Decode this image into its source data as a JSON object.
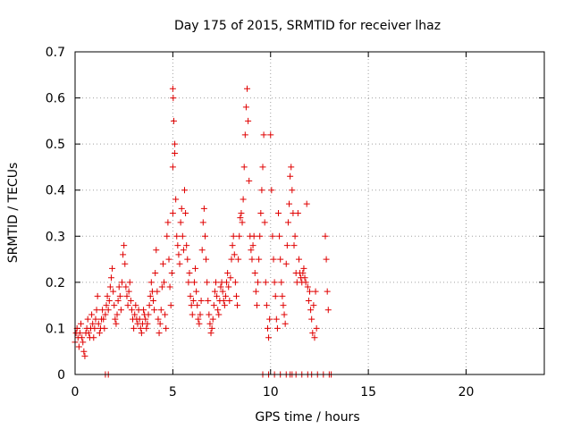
{
  "chart_data": {
    "type": "scatter",
    "title": "Day 175 of 2015, SRMTID for receiver lhaz",
    "xlabel": "GPS time / hours",
    "ylabel": "SRMTID / TECUs",
    "xlim": [
      0,
      24
    ],
    "ylim": [
      0,
      0.7
    ],
    "x_ticks": [
      0,
      5,
      10,
      15,
      20
    ],
    "x_tick_labels": [
      "0",
      "5",
      "10",
      "15",
      "20"
    ],
    "y_ticks": [
      0,
      0.1,
      0.2,
      0.3,
      0.4,
      0.5,
      0.6,
      0.7
    ],
    "y_tick_labels": [
      "0",
      "0.1",
      "0.2",
      "0.3",
      "0.4",
      "0.5",
      "0.6",
      "0.7"
    ],
    "grid": true,
    "marker": "plus",
    "color": "#e00000",
    "series": [
      {
        "name": "SRMTID",
        "points": [
          [
            0.0,
            0.07
          ],
          [
            0.05,
            0.09
          ],
          [
            0.1,
            0.1
          ],
          [
            0.15,
            0.08
          ],
          [
            0.2,
            0.06
          ],
          [
            0.25,
            0.09
          ],
          [
            0.3,
            0.11
          ],
          [
            0.35,
            0.08
          ],
          [
            0.4,
            0.07
          ],
          [
            0.45,
            0.05
          ],
          [
            0.5,
            0.04
          ],
          [
            0.55,
            0.09
          ],
          [
            0.6,
            0.1
          ],
          [
            0.65,
            0.12
          ],
          [
            0.7,
            0.09
          ],
          [
            0.75,
            0.08
          ],
          [
            0.8,
            0.1
          ],
          [
            0.85,
            0.13
          ],
          [
            0.9,
            0.11
          ],
          [
            0.95,
            0.08
          ],
          [
            1.0,
            0.1
          ],
          [
            1.05,
            0.12
          ],
          [
            1.1,
            0.14
          ],
          [
            1.15,
            0.17
          ],
          [
            1.2,
            0.11
          ],
          [
            1.25,
            0.09
          ],
          [
            1.3,
            0.1
          ],
          [
            1.35,
            0.12
          ],
          [
            1.4,
            0.14
          ],
          [
            1.45,
            0.12
          ],
          [
            1.5,
            0.1
          ],
          [
            1.55,
            0.13
          ],
          [
            1.6,
            0.15
          ],
          [
            1.65,
            0.17
          ],
          [
            1.7,
            0.14
          ],
          [
            1.75,
            0.16
          ],
          [
            1.8,
            0.19
          ],
          [
            1.85,
            0.21
          ],
          [
            1.9,
            0.23
          ],
          [
            1.95,
            0.18
          ],
          [
            2.0,
            0.15
          ],
          [
            2.05,
            0.12
          ],
          [
            2.1,
            0.11
          ],
          [
            2.15,
            0.13
          ],
          [
            2.2,
            0.16
          ],
          [
            2.25,
            0.19
          ],
          [
            2.3,
            0.17
          ],
          [
            2.35,
            0.14
          ],
          [
            2.4,
            0.2
          ],
          [
            2.45,
            0.26
          ],
          [
            2.5,
            0.28
          ],
          [
            2.55,
            0.24
          ],
          [
            2.6,
            0.19
          ],
          [
            2.65,
            0.17
          ],
          [
            2.7,
            0.15
          ],
          [
            2.75,
            0.18
          ],
          [
            2.8,
            0.2
          ],
          [
            2.85,
            0.16
          ],
          [
            2.9,
            0.14
          ],
          [
            2.95,
            0.12
          ],
          [
            3.0,
            0.1
          ],
          [
            3.05,
            0.13
          ],
          [
            3.1,
            0.15
          ],
          [
            3.15,
            0.12
          ],
          [
            3.2,
            0.11
          ],
          [
            3.25,
            0.14
          ],
          [
            3.3,
            0.12
          ],
          [
            3.35,
            0.1
          ],
          [
            3.4,
            0.09
          ],
          [
            3.45,
            0.11
          ],
          [
            3.5,
            0.14
          ],
          [
            3.55,
            0.13
          ],
          [
            3.6,
            0.12
          ],
          [
            3.65,
            0.1
          ],
          [
            3.7,
            0.11
          ],
          [
            3.75,
            0.13
          ],
          [
            3.8,
            0.15
          ],
          [
            3.85,
            0.17
          ],
          [
            3.9,
            0.2
          ],
          [
            3.95,
            0.18
          ],
          [
            4.0,
            0.16
          ],
          [
            4.05,
            0.14
          ],
          [
            4.1,
            0.22
          ],
          [
            4.15,
            0.27
          ],
          [
            4.2,
            0.18
          ],
          [
            4.25,
            0.12
          ],
          [
            4.3,
            0.09
          ],
          [
            4.35,
            0.11
          ],
          [
            4.4,
            0.14
          ],
          [
            4.45,
            0.19
          ],
          [
            4.5,
            0.24
          ],
          [
            4.55,
            0.2
          ],
          [
            4.6,
            0.13
          ],
          [
            4.65,
            0.1
          ],
          [
            4.7,
            0.3
          ],
          [
            4.75,
            0.33
          ],
          [
            4.8,
            0.25
          ],
          [
            4.85,
            0.19
          ],
          [
            4.9,
            0.15
          ],
          [
            4.95,
            0.22
          ],
          [
            5.0,
            0.35
          ],
          [
            5.0,
            0.45
          ],
          [
            5.0,
            0.62
          ],
          [
            5.02,
            0.6
          ],
          [
            5.05,
            0.55
          ],
          [
            5.1,
            0.5
          ],
          [
            5.1,
            0.48
          ],
          [
            5.15,
            0.38
          ],
          [
            5.2,
            0.3
          ],
          [
            5.25,
            0.28
          ],
          [
            5.3,
            0.26
          ],
          [
            5.35,
            0.24
          ],
          [
            5.4,
            0.33
          ],
          [
            5.45,
            0.36
          ],
          [
            5.5,
            0.3
          ],
          [
            5.55,
            0.27
          ],
          [
            5.6,
            0.4
          ],
          [
            5.65,
            0.35
          ],
          [
            5.7,
            0.28
          ],
          [
            5.75,
            0.25
          ],
          [
            5.8,
            0.2
          ],
          [
            5.85,
            0.22
          ],
          [
            5.9,
            0.17
          ],
          [
            5.95,
            0.15
          ],
          [
            6.0,
            0.13
          ],
          [
            6.05,
            0.16
          ],
          [
            6.1,
            0.2
          ],
          [
            6.15,
            0.23
          ],
          [
            6.2,
            0.18
          ],
          [
            6.25,
            0.15
          ],
          [
            6.3,
            0.12
          ],
          [
            6.35,
            0.11
          ],
          [
            6.4,
            0.13
          ],
          [
            6.45,
            0.16
          ],
          [
            6.5,
            0.27
          ],
          [
            6.55,
            0.33
          ],
          [
            6.6,
            0.36
          ],
          [
            6.65,
            0.3
          ],
          [
            6.7,
            0.25
          ],
          [
            6.75,
            0.2
          ],
          [
            6.8,
            0.16
          ],
          [
            6.85,
            0.13
          ],
          [
            6.9,
            0.11
          ],
          [
            6.95,
            0.09
          ],
          [
            7.0,
            0.1
          ],
          [
            7.05,
            0.12
          ],
          [
            7.1,
            0.15
          ],
          [
            7.15,
            0.18
          ],
          [
            7.2,
            0.2
          ],
          [
            7.25,
            0.17
          ],
          [
            7.3,
            0.14
          ],
          [
            7.35,
            0.13
          ],
          [
            7.4,
            0.16
          ],
          [
            7.45,
            0.19
          ],
          [
            7.5,
            0.2
          ],
          [
            7.55,
            0.18
          ],
          [
            7.6,
            0.16
          ],
          [
            7.65,
            0.15
          ],
          [
            7.7,
            0.17
          ],
          [
            7.75,
            0.2
          ],
          [
            7.8,
            0.22
          ],
          [
            7.85,
            0.19
          ],
          [
            7.9,
            0.16
          ],
          [
            7.95,
            0.21
          ],
          [
            8.0,
            0.25
          ],
          [
            8.05,
            0.28
          ],
          [
            8.1,
            0.3
          ],
          [
            8.15,
            0.26
          ],
          [
            8.2,
            0.2
          ],
          [
            8.25,
            0.17
          ],
          [
            8.3,
            0.15
          ],
          [
            8.35,
            0.25
          ],
          [
            8.4,
            0.3
          ],
          [
            8.45,
            0.34
          ],
          [
            8.5,
            0.35
          ],
          [
            8.55,
            0.33
          ],
          [
            8.6,
            0.38
          ],
          [
            8.65,
            0.45
          ],
          [
            8.7,
            0.52
          ],
          [
            8.75,
            0.58
          ],
          [
            8.8,
            0.62
          ],
          [
            8.85,
            0.55
          ],
          [
            8.9,
            0.42
          ],
          [
            8.95,
            0.3
          ],
          [
            9.0,
            0.27
          ],
          [
            9.05,
            0.25
          ],
          [
            9.1,
            0.28
          ],
          [
            9.15,
            0.3
          ],
          [
            9.2,
            0.22
          ],
          [
            9.25,
            0.18
          ],
          [
            9.3,
            0.15
          ],
          [
            9.35,
            0.2
          ],
          [
            9.4,
            0.25
          ],
          [
            9.45,
            0.3
          ],
          [
            9.5,
            0.35
          ],
          [
            9.55,
            0.4
          ],
          [
            9.6,
            0.45
          ],
          [
            9.65,
            0.52
          ],
          [
            9.7,
            0.33
          ],
          [
            9.75,
            0.2
          ],
          [
            9.8,
            0.15
          ],
          [
            9.85,
            0.1
          ],
          [
            9.9,
            0.08
          ],
          [
            9.95,
            0.12
          ],
          [
            10.0,
            0.52
          ],
          [
            10.05,
            0.4
          ],
          [
            10.1,
            0.3
          ],
          [
            10.15,
            0.25
          ],
          [
            10.2,
            0.2
          ],
          [
            10.25,
            0.17
          ],
          [
            10.3,
            0.12
          ],
          [
            10.35,
            0.1
          ],
          [
            10.4,
            0.35
          ],
          [
            10.45,
            0.3
          ],
          [
            10.5,
            0.25
          ],
          [
            10.55,
            0.2
          ],
          [
            10.6,
            0.17
          ],
          [
            10.65,
            0.15
          ],
          [
            10.7,
            0.13
          ],
          [
            10.75,
            0.11
          ],
          [
            10.8,
            0.24
          ],
          [
            10.85,
            0.28
          ],
          [
            10.9,
            0.33
          ],
          [
            10.95,
            0.37
          ],
          [
            11.0,
            0.43
          ],
          [
            11.05,
            0.45
          ],
          [
            11.1,
            0.4
          ],
          [
            11.15,
            0.35
          ],
          [
            11.2,
            0.28
          ],
          [
            11.25,
            0.3
          ],
          [
            11.3,
            0.22
          ],
          [
            11.35,
            0.2
          ],
          [
            11.4,
            0.35
          ],
          [
            11.45,
            0.25
          ],
          [
            11.5,
            0.22
          ],
          [
            11.55,
            0.21
          ],
          [
            11.6,
            0.2
          ],
          [
            11.65,
            0.22
          ],
          [
            11.7,
            0.23
          ],
          [
            11.75,
            0.21
          ],
          [
            11.8,
            0.2
          ],
          [
            11.85,
            0.37
          ],
          [
            11.9,
            0.19
          ],
          [
            11.95,
            0.16
          ],
          [
            12.0,
            0.18
          ],
          [
            12.05,
            0.14
          ],
          [
            12.1,
            0.12
          ],
          [
            12.15,
            0.09
          ],
          [
            12.2,
            0.15
          ],
          [
            12.25,
            0.08
          ],
          [
            12.3,
            0.18
          ],
          [
            12.35,
            0.1
          ],
          [
            12.8,
            0.3
          ],
          [
            12.85,
            0.25
          ],
          [
            12.9,
            0.18
          ],
          [
            12.95,
            0.14
          ],
          [
            1.55,
            0.0
          ],
          [
            1.7,
            0.0
          ],
          [
            9.6,
            0.0
          ],
          [
            9.9,
            0.0
          ],
          [
            10.2,
            0.0
          ],
          [
            10.5,
            0.0
          ],
          [
            10.8,
            0.0
          ],
          [
            11.0,
            0.0
          ],
          [
            11.1,
            0.0
          ],
          [
            11.3,
            0.0
          ],
          [
            11.6,
            0.0
          ],
          [
            11.9,
            0.0
          ],
          [
            12.1,
            0.0
          ],
          [
            12.4,
            0.0
          ],
          [
            12.7,
            0.0
          ],
          [
            13.0,
            0.0
          ],
          [
            13.1,
            0.0
          ]
        ]
      }
    ]
  }
}
